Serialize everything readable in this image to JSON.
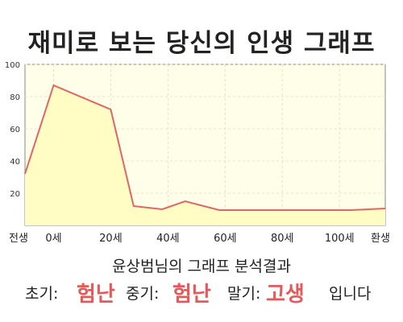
{
  "title": "재미로 보는 당신의 인생 그래프",
  "summary": "윤상범님의 그래프 분석결과",
  "result": {
    "early_label": "초기:",
    "early_value": "험난",
    "middle_label": "중기:",
    "middle_value": "험난",
    "late_label": "말기:",
    "late_value": "고생",
    "ending": "입니다"
  },
  "colors": {
    "line": "#e06666",
    "fill": "#fffdc4",
    "plot_background": "#fffee8",
    "grid": "#e4e2c8",
    "highlight": "#e45a5a"
  },
  "chart_data": {
    "type": "area",
    "title": "",
    "xlabel": "",
    "ylabel": "",
    "ylim": [
      0,
      100
    ],
    "yticks": [
      20,
      40,
      60,
      80,
      100
    ],
    "xticks": [
      "전생",
      "0세",
      "20세",
      "40세",
      "60세",
      "80세",
      "100세",
      "환생"
    ],
    "grid": true,
    "series": [
      {
        "x": [
          -10,
          0,
          20,
          28,
          38,
          46,
          58,
          80,
          104,
          116
        ],
        "values": [
          32,
          87,
          72,
          12,
          10,
          15,
          9.5,
          9.5,
          9.5,
          10.5
        ]
      }
    ]
  }
}
